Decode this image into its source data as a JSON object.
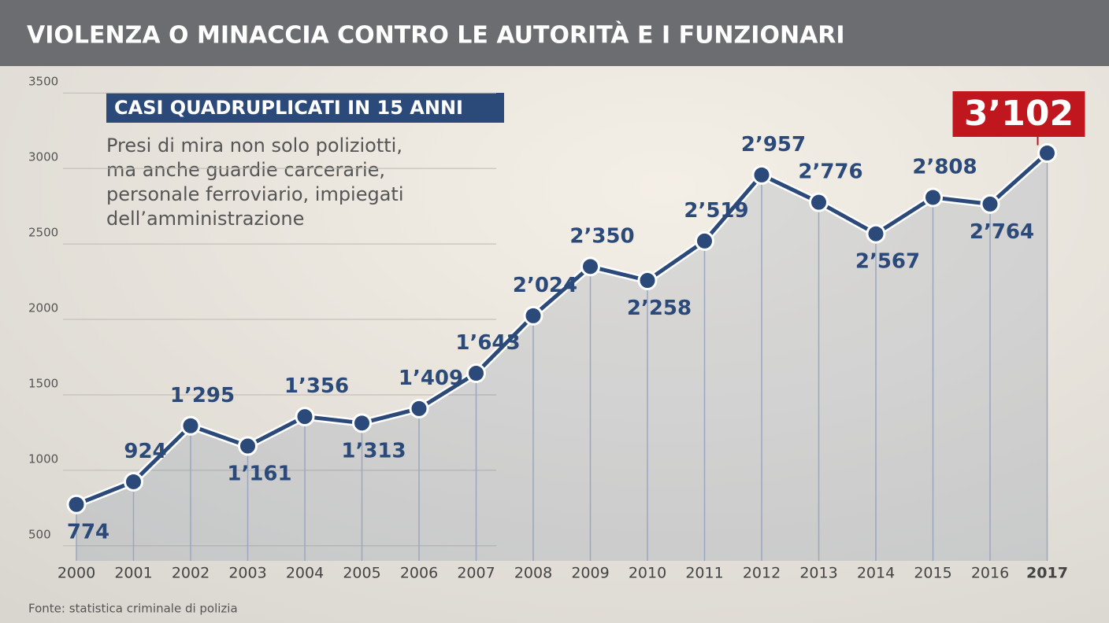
{
  "chart_data": {
    "type": "line",
    "title": "VIOLENZA O MINACCIA CONTRO LE AUTORITÀ E I FUNZIONARI",
    "subtitle": "CASI QUADRUPLICATI IN 15 ANNI",
    "description": [
      "Presi di mira non solo poliziotti,",
      "ma anche guardie carcerarie,",
      "personale ferroviario, impiegati",
      "dell’amministrazione"
    ],
    "source": "Fonte: statistica criminale di polizia",
    "categories": [
      "2000",
      "2001",
      "2002",
      "2003",
      "2004",
      "2005",
      "2006",
      "2007",
      "2008",
      "2009",
      "2010",
      "2011",
      "2012",
      "2013",
      "2014",
      "2015",
      "2016",
      "2017"
    ],
    "values": [
      774,
      924,
      1295,
      1161,
      1356,
      1313,
      1409,
      1643,
      2024,
      2350,
      2258,
      2519,
      2957,
      2776,
      2567,
      2808,
      2764,
      3102
    ],
    "value_labels": [
      "774",
      "924",
      "1’295",
      "1’161",
      "1’356",
      "1’313",
      "1’409",
      "1’643",
      "2’024",
      "2’350",
      "2’258",
      "2’519",
      "2’957",
      "2’776",
      "2’567",
      "2’808",
      "2’764",
      "3’102"
    ],
    "color": "#2b4a7a",
    "highlight_color": "#c0161d",
    "ylim": [
      400,
      3600
    ],
    "yticks": [
      500,
      1000,
      1500,
      2000,
      2500,
      3000,
      3500
    ],
    "grid": true
  }
}
